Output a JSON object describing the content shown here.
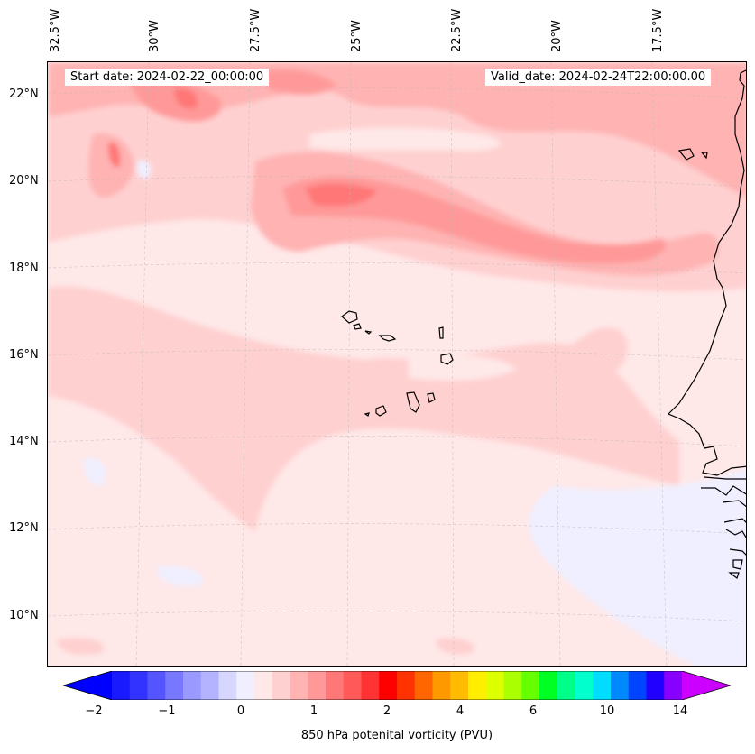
{
  "header": {
    "start_date": "Start date: 2024-02-22_00:00:00",
    "valid_date": "Valid_date: 2024-02-24T22:00:00.00"
  },
  "axes": {
    "lon_labels": [
      "32.5°W",
      "30°W",
      "27.5°W",
      "25°W",
      "22.5°W",
      "20°W",
      "17.5°W"
    ],
    "lat_labels": [
      "22°N",
      "20°N",
      "18°N",
      "16°N",
      "14°N",
      "12°N",
      "10°N"
    ]
  },
  "colorbar": {
    "label": "850 hPa potenital vorticity (PVU)",
    "ticks": [
      "−2",
      "−1",
      "0",
      "1",
      "2",
      "4",
      "6",
      "10",
      "14"
    ],
    "colors": [
      "#1a1aff",
      "#3333ff",
      "#5555ff",
      "#7777ff",
      "#9999ff",
      "#b3b3ff",
      "#d6d6ff",
      "#efefff",
      "#ffe8e8",
      "#ffd0d0",
      "#ffb3b3",
      "#ff9999",
      "#ff7777",
      "#ff5959",
      "#ff3333",
      "#ff0000",
      "#ff3300",
      "#ff6600",
      "#ff9900",
      "#ffbb00",
      "#ffee00",
      "#ddff00",
      "#aaff00",
      "#66ff00",
      "#00ff22",
      "#00ff88",
      "#00ffcc",
      "#00ddff",
      "#0088ff",
      "#0044ff",
      "#2200ff",
      "#8800ff"
    ],
    "under_color": "#0000ff",
    "over_color": "#cc00ff"
  }
}
